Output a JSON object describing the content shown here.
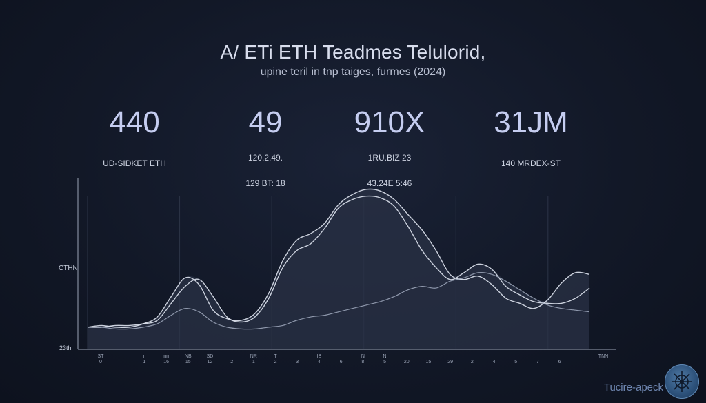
{
  "header": {
    "title": "A/ ETi ETH Teadmes Telulorid,",
    "subtitle": "upine teril in tnp taiges, furmes (2024)"
  },
  "stats": [
    {
      "value": "440",
      "label_lines": [
        "UD-SIDKET ETH"
      ]
    },
    {
      "value": "49",
      "label_lines": [
        "120,2,49.",
        "129 BT: 18"
      ]
    },
    {
      "value": "910X",
      "label_lines": [
        "1RU.BIZ 23",
        "43.24E 5:46"
      ]
    },
    {
      "value": "31JM",
      "label_lines": [
        "140 MRDEX-ST"
      ]
    }
  ],
  "brand": {
    "text": "Tucire-apeck",
    "logo": "compass-logo"
  },
  "colors": {
    "line": "#dfe4f0",
    "line_faint": "#aab4c8",
    "fill": "#2a3245",
    "axis": "#9aa3b5",
    "background": "#121827"
  },
  "chart_data": {
    "type": "area",
    "title": "",
    "xlabel": "",
    "ylabel": "CTHN",
    "y_bottom_label": "23th",
    "x_tick_labels_top": [
      "ST",
      "",
      "n",
      "nn",
      "NB",
      "SD",
      "",
      "NR",
      "T",
      "",
      "IB",
      "",
      "N",
      "N",
      "",
      "",
      "",
      "",
      "",
      "",
      "",
      "",
      "",
      "TNN"
    ],
    "x_tick_labels_bottom": [
      "0",
      "",
      "1",
      "16",
      "15",
      "12",
      "2",
      "1",
      "2",
      "3",
      "4",
      "6",
      "8",
      "5",
      "20",
      "15",
      "29",
      "2",
      "4",
      "5",
      "7",
      "6",
      "",
      ""
    ],
    "ylim": [
      0,
      100
    ],
    "grid": "vertical",
    "x": [
      0,
      1,
      2,
      3,
      4,
      5,
      6,
      7,
      8,
      9,
      10,
      11,
      12,
      13,
      14,
      15,
      16,
      17,
      18,
      19,
      20,
      21,
      22,
      23,
      24,
      25,
      26,
      27,
      28,
      29,
      30,
      31,
      32,
      33,
      34,
      35,
      36
    ],
    "series": [
      {
        "values": [
          13,
          14,
          13,
          13,
          15,
          19,
          31,
          42,
          38,
          23,
          18,
          17,
          21,
          33,
          52,
          64,
          68,
          74,
          85,
          91,
          94,
          93,
          88,
          79,
          70,
          58,
          44,
          41,
          43,
          38,
          30,
          27,
          24,
          29,
          39,
          45,
          44
        ]
      },
      {
        "values": [
          13,
          13,
          14,
          14,
          15,
          17,
          27,
          37,
          41,
          31,
          19,
          16,
          19,
          30,
          48,
          58,
          62,
          71,
          83,
          88,
          90,
          89,
          84,
          72,
          58,
          48,
          41,
          45,
          50,
          47,
          37,
          32,
          28,
          27,
          27,
          30,
          36
        ]
      },
      {
        "values": [
          13,
          13,
          12,
          12,
          13,
          15,
          20,
          24,
          22,
          16,
          13,
          12,
          12,
          13,
          14,
          17,
          19,
          20,
          22,
          24,
          26,
          28,
          31,
          35,
          37,
          36,
          40,
          42,
          45,
          44,
          40,
          35,
          30,
          26,
          24,
          23,
          22
        ]
      }
    ]
  }
}
